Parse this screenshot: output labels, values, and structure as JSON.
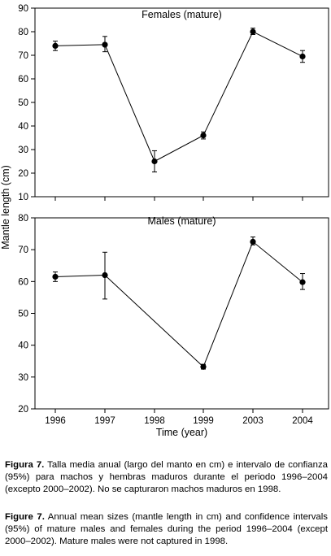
{
  "chart_data": [
    {
      "type": "line",
      "title": "Females (mature)",
      "ylabel": "Mantle length (cm)",
      "ylim": [
        10,
        90
      ],
      "yticks": [
        10,
        20,
        30,
        40,
        50,
        60,
        70,
        80,
        90
      ],
      "categories": [
        "1996",
        "1997",
        "1998",
        "1999",
        "2003",
        "2004"
      ],
      "values": [
        74,
        74.5,
        25,
        36,
        80,
        69.5
      ],
      "ci_low": [
        72,
        71.5,
        20.5,
        34.5,
        78.8,
        67
      ],
      "ci_high": [
        76,
        78,
        29.5,
        37.5,
        81.5,
        72
      ],
      "grid": false
    },
    {
      "type": "line",
      "title": "Males (mature)",
      "xlabel": "Time (year)",
      "ylabel": "Mantle length (cm)",
      "ylim": [
        20,
        80
      ],
      "yticks": [
        20,
        30,
        40,
        50,
        60,
        70,
        80
      ],
      "categories": [
        "1996",
        "1997",
        "1998",
        "1999",
        "2003",
        "2004"
      ],
      "values": [
        61.5,
        62,
        null,
        33.2,
        72.5,
        59.8
      ],
      "ci_low": [
        60,
        54.5,
        null,
        32.5,
        71.5,
        57.5
      ],
      "ci_high": [
        63,
        69.2,
        null,
        34,
        74,
        62.5
      ],
      "grid": false
    }
  ],
  "captions": {
    "es_label": "Figura 7.",
    "es_text": " Talla media anual (largo del manto en cm) e intervalo de confianza (95%) para machos y hembras maduros durante el periodo 1996–2004 (excepto 2000–2002). No se capturaron machos maduros en 1998.",
    "en_label": "Figure 7.",
    "en_text": " Annual mean sizes (mantle length in cm) and confidence intervals (95%) of mature males and females during the period 1996–2004 (except 2000–2002). Mature males were not captured in 1998."
  }
}
